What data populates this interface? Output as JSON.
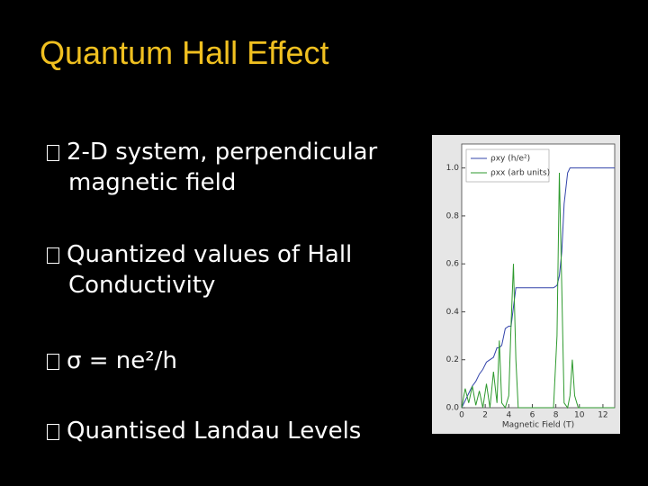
{
  "header": {
    "title": "Quantum Hall Effect"
  },
  "bullets": [
    "2-D system, perpendicular magnetic field",
    "Quantized values of Hall Conductivity",
    "σ = ne²/h",
    "Quantised Landau Levels"
  ],
  "chart_data": {
    "type": "line",
    "x_label": "Magnetic Field (T)",
    "x": [
      0,
      0.3,
      0.6,
      0.9,
      1.2,
      1.5,
      1.8,
      2.1,
      2.4,
      2.7,
      3.0,
      3.2,
      3.4,
      3.7,
      4.0,
      4.2,
      4.4,
      4.6,
      4.8,
      5.2,
      6,
      7,
      7.8,
      8.1,
      8.3,
      8.5,
      8.7,
      9.0,
      9.2,
      9.4,
      9.6,
      9.9,
      10.5,
      11,
      12,
      13
    ],
    "series": [
      {
        "name": "ρxy (h/e²)",
        "color": "#3344aa",
        "values": [
          0,
          0.03,
          0.06,
          0.09,
          0.11,
          0.14,
          0.16,
          0.19,
          0.2,
          0.21,
          0.25,
          0.25,
          0.26,
          0.33,
          0.34,
          0.34,
          0.42,
          0.5,
          0.5,
          0.5,
          0.5,
          0.5,
          0.5,
          0.51,
          0.55,
          0.65,
          0.85,
          0.98,
          1.0,
          1.0,
          1.0,
          1.0,
          1.0,
          1.0,
          1.0,
          1.0
        ]
      },
      {
        "name": "ρxx (arb units)",
        "color": "#2e9a2e",
        "values": [
          0,
          0.08,
          0.02,
          0.09,
          0.01,
          0.07,
          0.0,
          0.1,
          0.0,
          0.15,
          0.02,
          0.28,
          0.02,
          0.0,
          0.05,
          0.35,
          0.6,
          0.2,
          0.0,
          0.0,
          0.0,
          0.0,
          0.0,
          0.3,
          0.98,
          0.5,
          0.02,
          0.0,
          0.05,
          0.2,
          0.05,
          0.0,
          0.0,
          0.0,
          0.0,
          0.0
        ]
      }
    ],
    "xlim": [
      0,
      13
    ],
    "ylim": [
      0,
      1.1
    ],
    "xticks": [
      0,
      2,
      4,
      6,
      8,
      10,
      12
    ],
    "yticks": [
      {
        "value": 0,
        "label": "0.0"
      },
      0.2,
      0.4,
      0.6,
      0.8,
      {
        "value": 1,
        "label": "1.0"
      }
    ],
    "legend": "upper-left"
  }
}
